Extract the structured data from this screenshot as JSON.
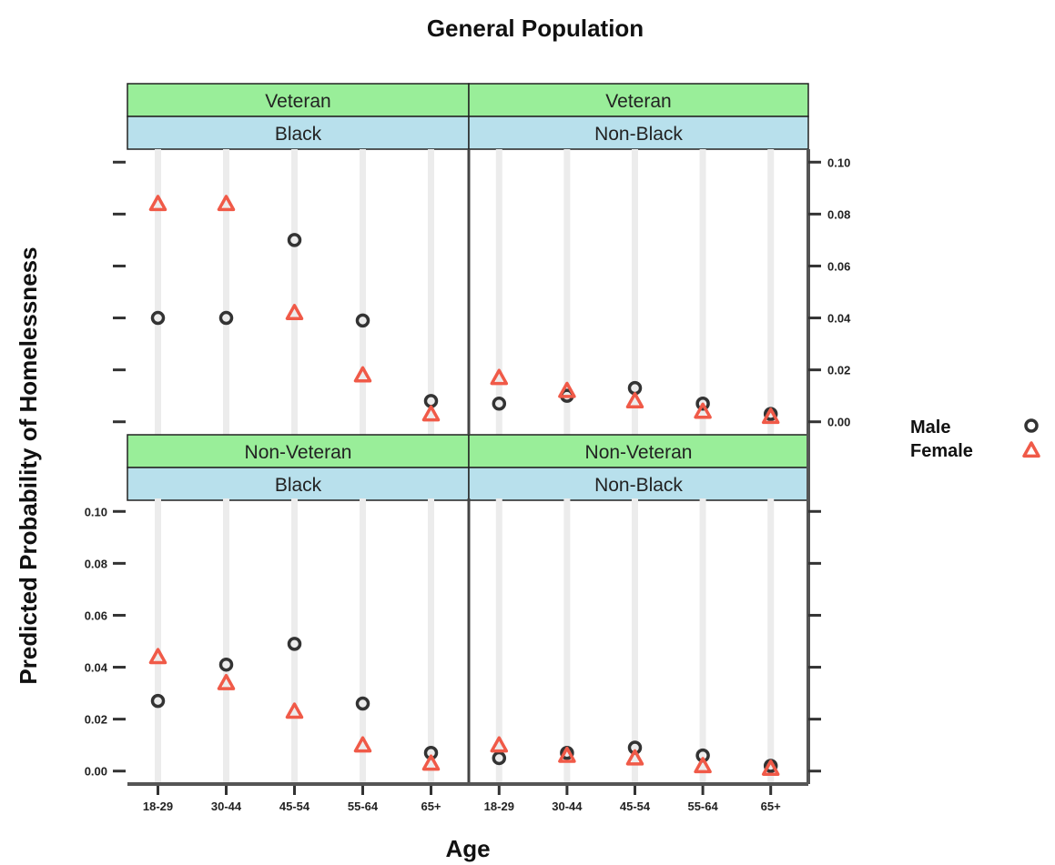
{
  "chart_data": {
    "type": "scatter",
    "title": "General Population",
    "xlabel": "Age",
    "ylabel": "Predicted Probability of Homelessness",
    "categories": [
      "18-29",
      "30-44",
      "45-54",
      "55-64",
      "65+"
    ],
    "ylim": [
      -0.005,
      0.105
    ],
    "yticks": [
      "0.00",
      "0.02",
      "0.04",
      "0.06",
      "0.08",
      "0.10"
    ],
    "grid": true,
    "legend_position": "right",
    "colors": {
      "male": "#333333",
      "female": "#f05a48",
      "strip_outer": "#99ee99",
      "strip_inner": "#b8e0ec",
      "guide": "#ececec",
      "frame": "#555555"
    },
    "legend": [
      {
        "label": "Male",
        "symbol": "o",
        "color": "#333333"
      },
      {
        "label": "Female",
        "symbol": "triangle",
        "color": "#f05a48"
      }
    ],
    "panels": [
      {
        "strip_outer": "Veteran",
        "strip_inner": "Black",
        "series": [
          {
            "name": "Male",
            "values": [
              0.04,
              0.04,
              0.07,
              0.039,
              0.008
            ]
          },
          {
            "name": "Female",
            "values": [
              0.084,
              0.084,
              0.042,
              0.018,
              0.003
            ]
          }
        ]
      },
      {
        "strip_outer": "Veteran",
        "strip_inner": "Non-Black",
        "series": [
          {
            "name": "Male",
            "values": [
              0.007,
              0.01,
              0.013,
              0.007,
              0.003
            ]
          },
          {
            "name": "Female",
            "values": [
              0.017,
              0.012,
              0.008,
              0.004,
              0.002
            ]
          }
        ]
      },
      {
        "strip_outer": "Non-Veteran",
        "strip_inner": "Black",
        "series": [
          {
            "name": "Male",
            "values": [
              0.027,
              0.041,
              0.049,
              0.026,
              0.007
            ]
          },
          {
            "name": "Female",
            "values": [
              0.044,
              0.034,
              0.023,
              0.01,
              0.003
            ]
          }
        ]
      },
      {
        "strip_outer": "Non-Veteran",
        "strip_inner": "Non-Black",
        "series": [
          {
            "name": "Male",
            "values": [
              0.005,
              0.007,
              0.009,
              0.006,
              0.002
            ]
          },
          {
            "name": "Female",
            "values": [
              0.01,
              0.006,
              0.005,
              0.002,
              0.001
            ]
          }
        ]
      }
    ]
  }
}
